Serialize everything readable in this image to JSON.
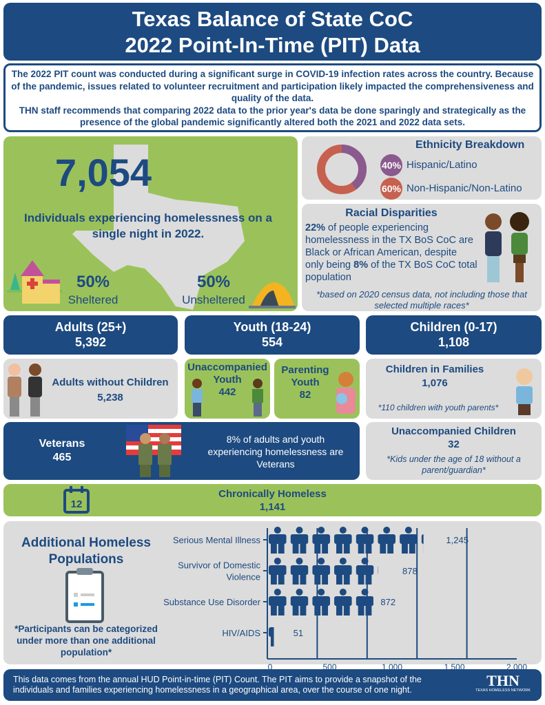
{
  "header": {
    "title_line1": "Texas Balance of State CoC",
    "title_line2": "2022 Point-In-Time (PIT) Data"
  },
  "notice": {
    "p1": "The 2022 PIT count was conducted during a significant surge in COVID-19 infection rates across the country. Because of the pandemic, issues related to volunteer recruitment and participation likely impacted the comprehensiveness and quality of the data.",
    "p2": "THN staff recommends that comparing 2022 data to the prior year's data be done sparingly and strategically as the presence of the global pandemic significantly altered both the 2021 and 2022 data sets."
  },
  "total": {
    "value": "7,054",
    "caption": "Individuals experiencing homelessness on a single night in 2022.",
    "sheltered_pct": "50%",
    "sheltered_label": "Sheltered",
    "unsheltered_pct": "50%",
    "unsheltered_label": "Unsheltered"
  },
  "ethnicity": {
    "title": "Ethnicity Breakdown",
    "items": [
      {
        "pct": "40%",
        "value": 40,
        "label": "Hispanic/Latino",
        "color": "#8a5a8e"
      },
      {
        "pct": "60%",
        "value": 60,
        "label": "Non-Hispanic/Non-Latino",
        "color": "#c6604f"
      }
    ]
  },
  "race": {
    "title": "Racial Disparities",
    "pct1": "22%",
    "t1": " of people experiencing homelessness in the TX BoS CoC are Black or African American, despite only being ",
    "pct2": "8%",
    "t2": " of the TX BoS CoC total population",
    "note": "*based on 2020 census data, not including those that selected multiple races*"
  },
  "age": [
    {
      "label": "Adults (25+)",
      "value": "5,392"
    },
    {
      "label": "Youth (18-24)",
      "value": "554"
    },
    {
      "label": "Children (0-17)",
      "value": "1,108"
    }
  ],
  "adults_no_children": {
    "label": "Adults without Children",
    "value": "5,238"
  },
  "unaccompanied_youth": {
    "label": "Unaccompanied Youth",
    "value": "442"
  },
  "parenting_youth": {
    "label": "Parenting Youth",
    "value": "82"
  },
  "children_families": {
    "label": "Children in Families",
    "value": "1,076",
    "note": "*110 children with youth parents*"
  },
  "veterans": {
    "label": "Veterans",
    "value": "465",
    "note": "8% of adults and youth experiencing homelessness are Veterans"
  },
  "unaccompanied_children": {
    "label": "Unaccompanied Children",
    "value": "32",
    "note": "*Kids under the age of 18 without a parent/guardian*"
  },
  "chronic": {
    "label": "Chronically Homeless",
    "value": "1,141",
    "calendar_day": "12"
  },
  "additional": {
    "title": "Additional Homeless Populations",
    "note": "*Participants can be categorized under more than one additional population*"
  },
  "chart_data": {
    "type": "bar",
    "orientation": "horizontal",
    "categories": [
      "Serious Mental Illness",
      "Survivor of Domestic Violence",
      "Substance Use Disorder",
      "HIV/AIDS"
    ],
    "values": [
      1245,
      878,
      872,
      51
    ],
    "value_labels": [
      "1,245",
      "878",
      "872",
      "51"
    ],
    "xlim": [
      0,
      2000
    ],
    "ticks": [
      "0",
      "500",
      "1,000",
      "1,500",
      "2,000"
    ],
    "tick_values": [
      0,
      500,
      1000,
      1500,
      2000
    ],
    "gridlines": [
      400,
      800,
      1200,
      1600
    ],
    "color": "#1d4a80",
    "mark": "person-pictogram"
  },
  "footer": {
    "text": "This data comes from the annual HUD Point-in-time (PIT) Count. The PIT aims to provide a snapshot of the individuals and families experiencing homelessness in a geographical area, over the course of one night.",
    "logo": "THN",
    "logo_sub": "TEXAS HOMELESS NETWORK"
  }
}
